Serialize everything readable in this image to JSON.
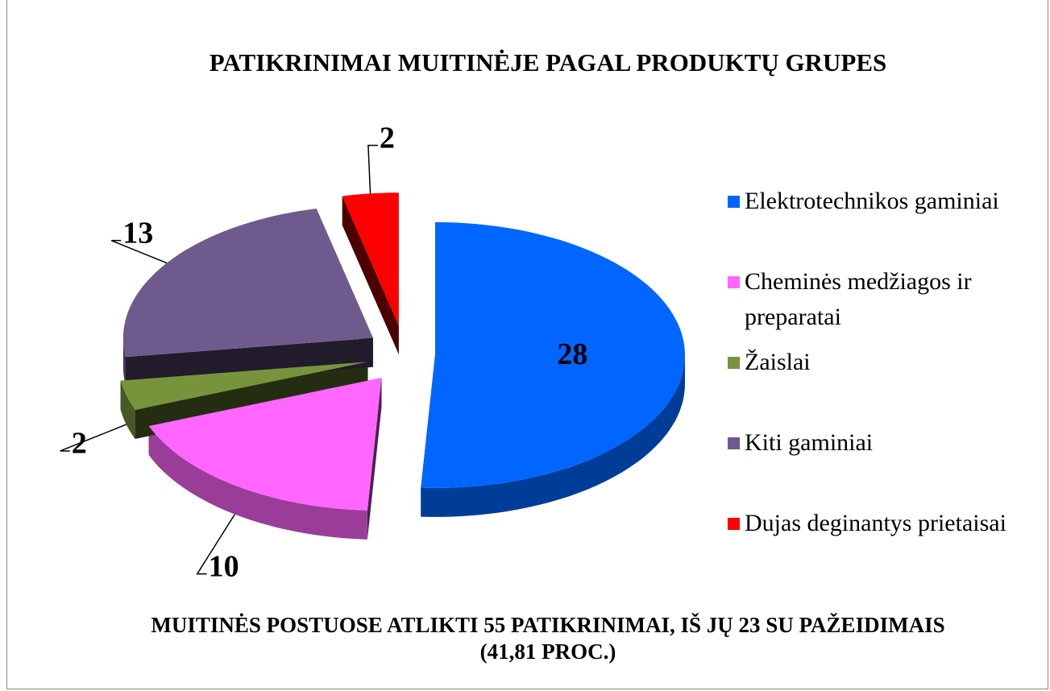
{
  "chart_data": {
    "type": "pie",
    "title": "PATIKRINIMAI MUITINĖJE PAGAL PRODUKTŲ GRUPES",
    "annotation": "MUITINĖS POSTUOSE ATLIKTI 55 PATIKRINIMAI, IŠ JŲ 23 SU PAŽEIDIMAIS (41,81 PROC.)",
    "categories": [
      "Elektrotechnikos gaminiai",
      "Cheminės medžiagos ir preparatai",
      "Žaislai",
      "Kiti gaminiai",
      "Dujas deginantys prietaisai"
    ],
    "values": [
      28,
      10,
      2,
      13,
      2
    ],
    "colors": [
      "#0066ff",
      "#ff66ff",
      "#77933c",
      "#6f5a8e",
      "#ff0000"
    ],
    "legend": "right"
  }
}
